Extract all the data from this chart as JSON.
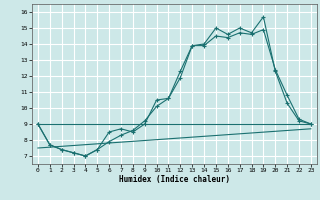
{
  "xlabel": "Humidex (Indice chaleur)",
  "background_color": "#cde8e8",
  "grid_color": "#ffffff",
  "line_color": "#1a7070",
  "xlim": [
    -0.5,
    23.5
  ],
  "ylim": [
    6.5,
    16.5
  ],
  "xticks": [
    0,
    1,
    2,
    3,
    4,
    5,
    6,
    7,
    8,
    9,
    10,
    11,
    12,
    13,
    14,
    15,
    16,
    17,
    18,
    19,
    20,
    21,
    22,
    23
  ],
  "yticks": [
    7,
    8,
    9,
    10,
    11,
    12,
    13,
    14,
    15,
    16
  ],
  "lines": [
    {
      "x": [
        0,
        1,
        2,
        3,
        4,
        5,
        6,
        7,
        8,
        9,
        10,
        11,
        12,
        13,
        14,
        15,
        16,
        17,
        18,
        19,
        20,
        21,
        22,
        23
      ],
      "y": [
        9.0,
        7.7,
        7.4,
        7.2,
        7.0,
        7.4,
        8.5,
        8.7,
        8.5,
        9.0,
        10.5,
        10.6,
        12.3,
        13.9,
        14.0,
        15.0,
        14.6,
        15.0,
        14.7,
        15.7,
        12.3,
        10.3,
        9.2,
        9.0
      ],
      "has_markers": true
    },
    {
      "x": [
        0,
        1,
        2,
        3,
        4,
        5,
        6,
        7,
        8,
        9,
        10,
        11,
        12,
        13,
        14,
        15,
        16,
        17,
        18,
        19,
        20,
        21,
        22,
        23
      ],
      "y": [
        9.0,
        7.7,
        7.4,
        7.2,
        7.0,
        7.4,
        7.9,
        8.3,
        8.6,
        9.2,
        10.1,
        10.6,
        11.9,
        13.9,
        13.9,
        14.5,
        14.4,
        14.7,
        14.6,
        14.9,
        12.4,
        10.8,
        9.3,
        9.0
      ],
      "has_markers": true
    },
    {
      "x": [
        0,
        23
      ],
      "y": [
        9.0,
        9.0
      ],
      "has_markers": false
    },
    {
      "x": [
        0,
        23
      ],
      "y": [
        7.5,
        8.7
      ],
      "has_markers": false
    }
  ]
}
